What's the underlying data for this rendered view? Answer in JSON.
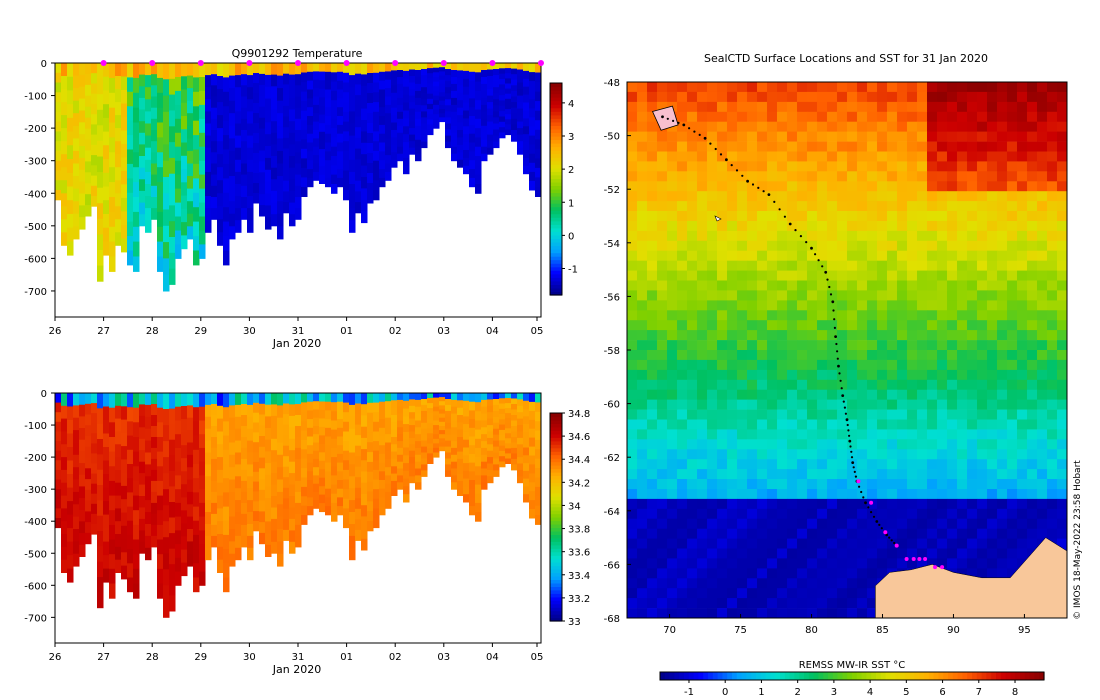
{
  "panels": {
    "temperature": {
      "title": "Q9901292  Temperature"
    },
    "salinity": {
      "title": ""
    },
    "map": {
      "title": "SealCTD Surface Locations and SST for 31 Jan 2020"
    }
  },
  "colors": {
    "colormap": [
      "#00008b",
      "#0000ff",
      "#00a0ff",
      "#00e0d0",
      "#00c060",
      "#7fd000",
      "#e0e000",
      "#ffb000",
      "#ff6000",
      "#cc0000",
      "#8b0000"
    ],
    "land": "#f8c79a",
    "ocean_icecap": "#00008f",
    "profile_marker": "#ff00ff",
    "track": "#000000"
  },
  "credit": "©  IMOS 18-May-2022 23:58 Hobart",
  "chart_data": [
    {
      "type": "heatmap",
      "panel": "temperature",
      "title": "Q9901292  Temperature",
      "xlabel": "Jan 2020",
      "ylabel": "",
      "x_ticks": [
        "26",
        "27",
        "28",
        "29",
        "30",
        "31",
        "01",
        "02",
        "03",
        "04",
        "05"
      ],
      "y_ticks": [
        0,
        -100,
        -200,
        -300,
        -400,
        -500,
        -600,
        -700
      ],
      "ylim": [
        -780,
        0
      ],
      "colorbar": {
        "min": -1.8,
        "max": 4.6,
        "ticks": [
          -1,
          0,
          1,
          2,
          3,
          4
        ]
      },
      "profile_markers": [
        27,
        28,
        29,
        30,
        31,
        32,
        33,
        34,
        35,
        36
      ],
      "profile_depths": [
        -420,
        -560,
        -590,
        -540,
        -510,
        -470,
        -440,
        -670,
        -590,
        -640,
        -560,
        -580,
        -620,
        -640,
        -500,
        -520,
        -480,
        -640,
        -700,
        -680,
        -600,
        -570,
        -540,
        -620,
        -600,
        -520,
        -480,
        -560,
        -620,
        -540,
        -520,
        -480,
        -520,
        -430,
        -470,
        -510,
        -500,
        -540,
        -460,
        -500,
        -480,
        -410,
        -380,
        -360,
        -370,
        -380,
        -400,
        -380,
        -420,
        -520,
        -460,
        -490,
        -430,
        -420,
        -380,
        -360,
        -320,
        -300,
        -340,
        -280,
        -300,
        -260,
        -220,
        -200,
        -180,
        -260,
        -300,
        -320,
        -340,
        -380,
        -400,
        -300,
        -280,
        -260,
        -230,
        -220,
        -240,
        -280,
        -340,
        -390,
        -410
      ],
      "surface_temp": 2.8,
      "subsurface_temp": -1.7
    },
    {
      "type": "heatmap",
      "panel": "salinity",
      "title": "",
      "xlabel": "Jan 2020",
      "ylabel": "",
      "x_ticks": [
        "26",
        "27",
        "28",
        "29",
        "30",
        "31",
        "01",
        "02",
        "03",
        "04",
        "05"
      ],
      "y_ticks": [
        0,
        -100,
        -200,
        -300,
        -400,
        -500,
        -600,
        -700
      ],
      "ylim": [
        -780,
        0
      ],
      "colorbar": {
        "min": 33,
        "max": 34.8,
        "ticks": [
          "33",
          "33.2",
          "33.4",
          "33.6",
          "33.8",
          "34",
          "34.2",
          "34.4",
          "34.6",
          "34.8"
        ]
      },
      "surface_salinity": 33.9,
      "deep_salinity": 34.7
    },
    {
      "type": "heatmap",
      "panel": "map",
      "title": "SealCTD Surface Locations and SST for 31 Jan 2020",
      "xlabel": "",
      "ylabel": "",
      "x_ticks": [
        "70",
        "75",
        "80",
        "85",
        "90",
        "95"
      ],
      "y_ticks": [
        "-48",
        "-50",
        "-52",
        "-54",
        "-56",
        "-58",
        "-60",
        "-62",
        "-64",
        "-66",
        "-68"
      ],
      "xlim": [
        67,
        98
      ],
      "ylim": [
        -68,
        -48
      ],
      "colorbar": {
        "label": "REMSS MW-IR SST °C",
        "min": -1.8,
        "max": 8.8,
        "ticks": [
          "-1",
          "0",
          "1",
          "2",
          "3",
          "4",
          "5",
          "6",
          "7",
          "8"
        ]
      },
      "track": [
        [
          69.5,
          -49.3
        ],
        [
          71,
          -49.6
        ],
        [
          72.5,
          -50.1
        ],
        [
          74,
          -50.9
        ],
        [
          75.5,
          -51.7
        ],
        [
          77,
          -52.2
        ],
        [
          78.5,
          -53.3
        ],
        [
          80,
          -54.2
        ],
        [
          81,
          -55.1
        ],
        [
          81.5,
          -56.2
        ],
        [
          81.7,
          -57.5
        ],
        [
          81.9,
          -58.6
        ],
        [
          82.2,
          -59.7
        ],
        [
          82.5,
          -60.6
        ],
        [
          82.7,
          -61.4
        ],
        [
          82.9,
          -62.2
        ],
        [
          83.2,
          -62.9
        ],
        [
          83.8,
          -63.7
        ],
        [
          84.6,
          -64.4
        ],
        [
          85.3,
          -64.9
        ],
        [
          86,
          -65.3
        ]
      ],
      "magenta_points": [
        [
          83.3,
          -62.9
        ],
        [
          84.2,
          -63.7
        ],
        [
          85.2,
          -64.8
        ],
        [
          86.0,
          -65.3
        ],
        [
          86.7,
          -65.8
        ],
        [
          87.2,
          -65.8
        ],
        [
          87.6,
          -65.8
        ],
        [
          88.0,
          -65.8
        ],
        [
          88.7,
          -66.1
        ],
        [
          89.2,
          -66.1
        ]
      ]
    }
  ]
}
